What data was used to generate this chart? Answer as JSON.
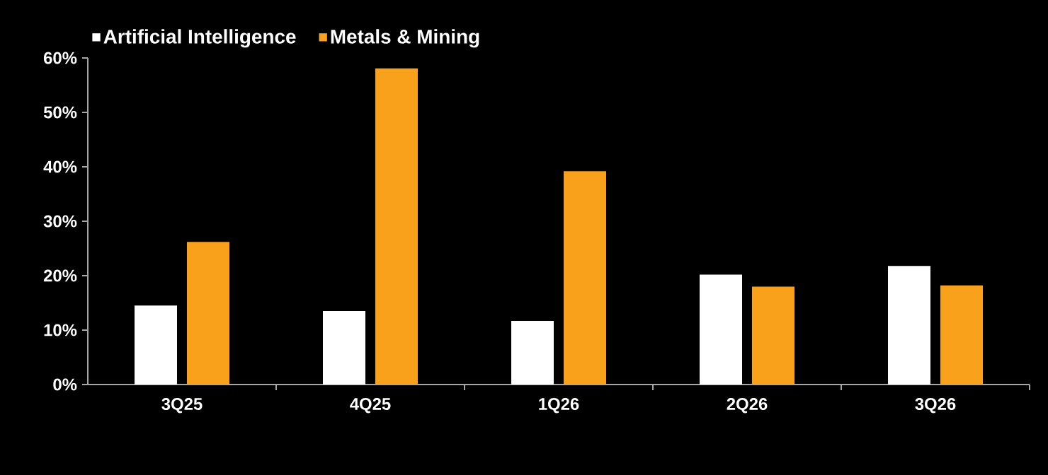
{
  "chart_data": {
    "type": "bar",
    "categories": [
      "3Q25",
      "4Q25",
      "1Q26",
      "2Q26",
      "3Q26"
    ],
    "series": [
      {
        "name": "Artificial Intelligence",
        "color": "#ffffff",
        "values": [
          14.5,
          13.5,
          11.7,
          20.2,
          21.8
        ]
      },
      {
        "name": "Metals & Mining",
        "color": "#f9a11b",
        "values": [
          26.2,
          58.1,
          39.2,
          18.0,
          18.2
        ]
      }
    ],
    "ylim": [
      0,
      60
    ],
    "yticks": [
      {
        "value": 0,
        "label": "0%"
      },
      {
        "value": 10,
        "label": "10%"
      },
      {
        "value": 20,
        "label": "20%"
      },
      {
        "value": 30,
        "label": "30%"
      },
      {
        "value": 40,
        "label": "40%"
      },
      {
        "value": 50,
        "label": "50%"
      },
      {
        "value": 60,
        "label": "60%"
      }
    ],
    "grid": false,
    "legend": "top left"
  }
}
